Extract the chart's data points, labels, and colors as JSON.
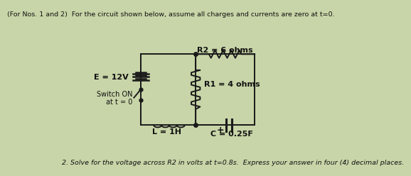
{
  "bg_color": "#c8d5a8",
  "title_text": "(For Nos. 1 and 2)  For the circuit shown below, assume all charges and currents are zero at t=0.",
  "title_fontsize": 6.8,
  "footer_text": "2. Solve for the voltage across R2 in volts at t=0.8s.  Express your answer in four (4) decimal places.",
  "footer_fontsize": 6.8,
  "label_L": "L = 1H",
  "label_C": "C = 0.25F",
  "label_R1": "R1 = 4 ohms",
  "label_R2": "R2 = 6 ohms",
  "label_E": "E = 12V",
  "label_switch": "Switch ON\nat t = 0",
  "line_color": "#1a1a1a",
  "text_color": "#111111"
}
